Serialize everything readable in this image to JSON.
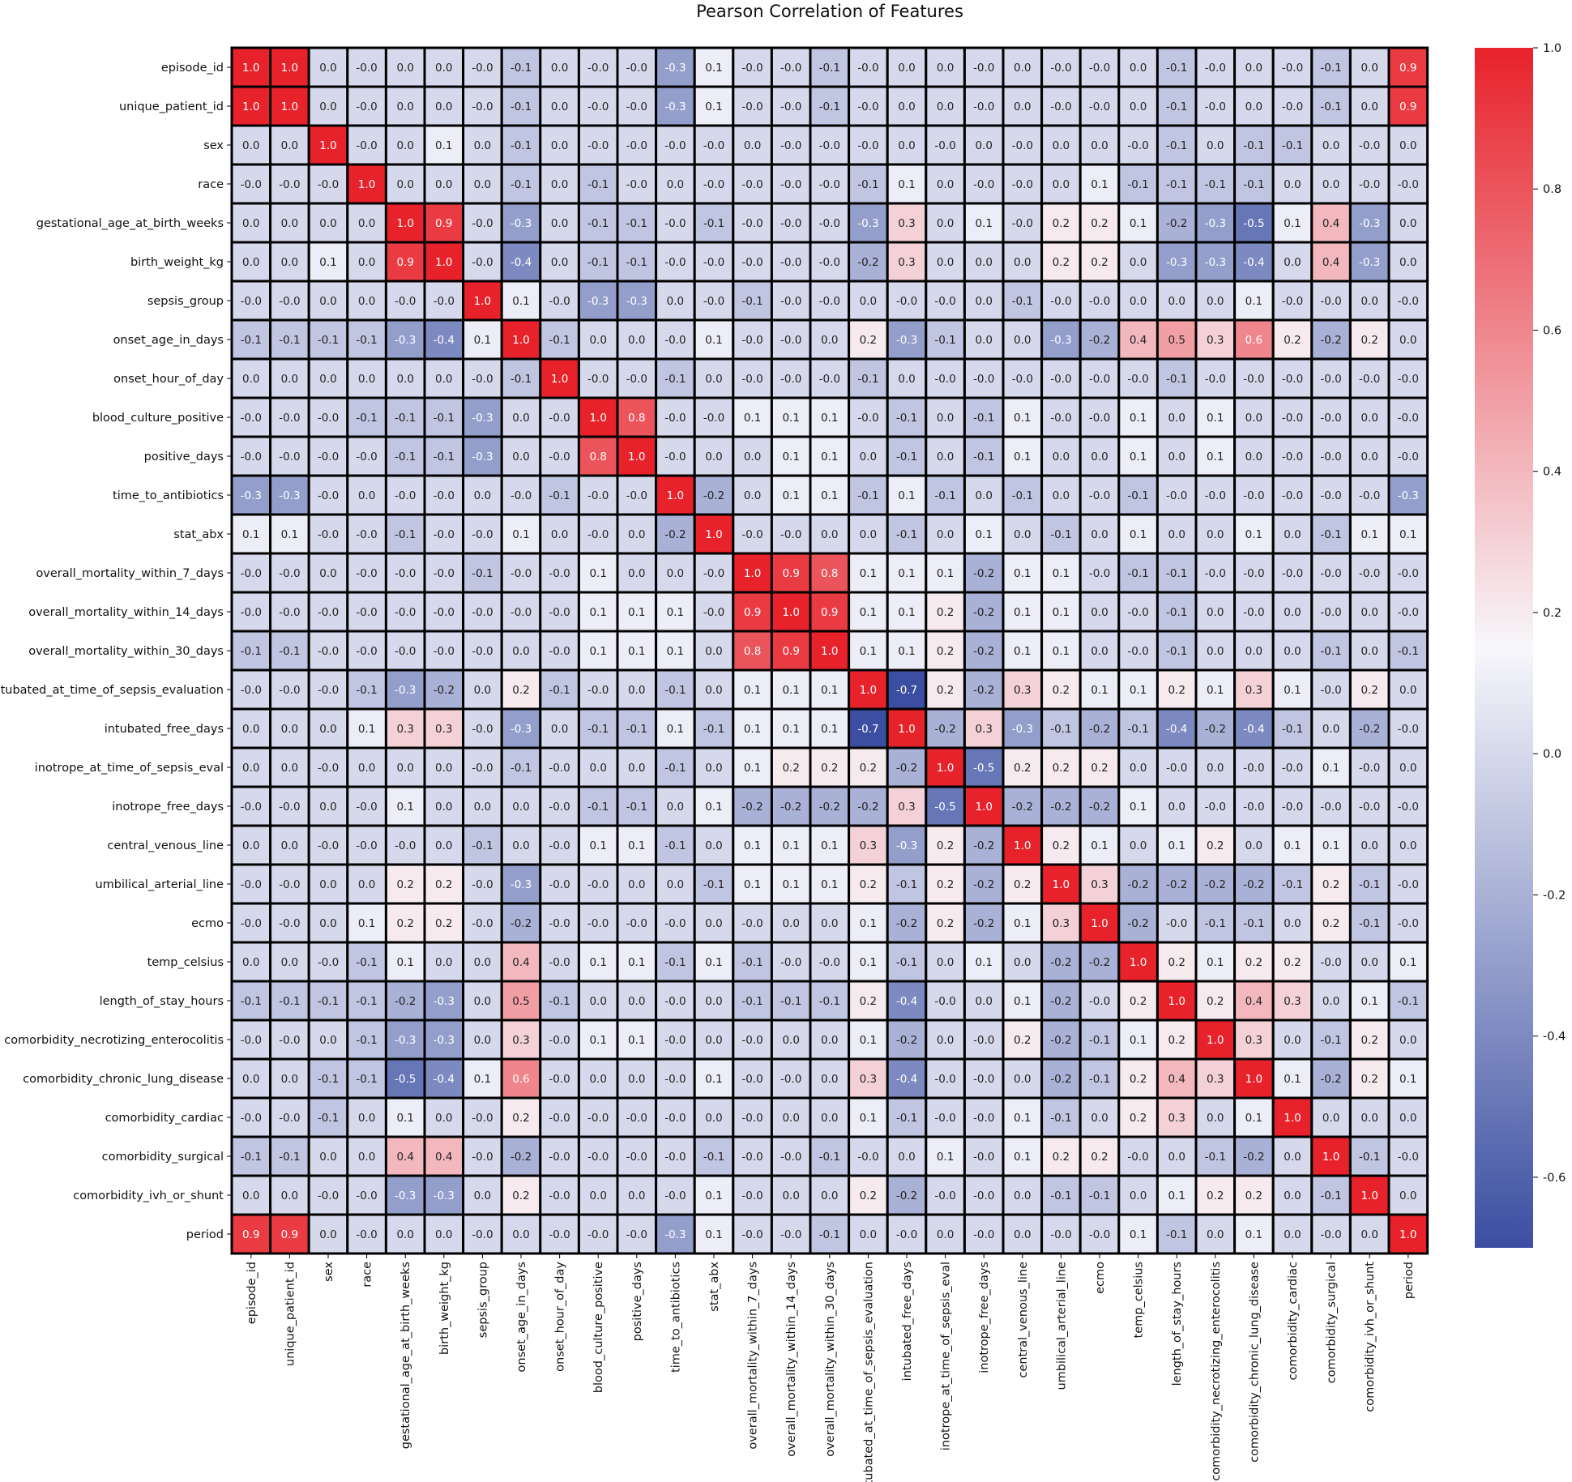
{
  "chart_data": {
    "type": "heatmap",
    "title": "Pearson Correlation of Features",
    "xlabel": "",
    "ylabel": "",
    "labels": [
      "episode_id",
      "unique_patient_id",
      "sex",
      "race",
      "gestational_age_at_birth_weeks",
      "birth_weight_kg",
      "sepsis_group",
      "onset_age_in_days",
      "onset_hour_of_day",
      "blood_culture_positive",
      "positive_days",
      "time_to_antibiotics",
      "stat_abx",
      "overall_mortality_within_7_days",
      "overall_mortality_within_14_days",
      "overall_mortality_within_30_days",
      "intubated_at_time_of_sepsis_evaluation",
      "intubated_free_days",
      "inotrope_at_time_of_sepsis_eval",
      "inotrope_free_days",
      "central_venous_line",
      "umbilical_arterial_line",
      "ecmo",
      "temp_celsius",
      "length_of_stay_hours",
      "comorbidity_necrotizing_enterocolitis",
      "comorbidity_chronic_lung_disease",
      "comorbidity_cardiac",
      "comorbidity_surgical",
      "comorbidity_ivh_or_shunt",
      "period"
    ],
    "display": [
      [
        "1.0",
        "1.0",
        "0.0",
        "-0.0",
        "0.0",
        "0.0",
        "-0.0",
        "-0.1",
        "0.0",
        "-0.0",
        "-0.0",
        "-0.3",
        "0.1",
        "-0.0",
        "-0.0",
        "-0.1",
        "-0.0",
        "0.0",
        "0.0",
        "-0.0",
        "0.0",
        "-0.0",
        "-0.0",
        "0.0",
        "-0.1",
        "-0.0",
        "0.0",
        "-0.0",
        "-0.1",
        "0.0",
        "0.9"
      ],
      [
        "1.0",
        "1.0",
        "0.0",
        "-0.0",
        "0.0",
        "0.0",
        "-0.0",
        "-0.1",
        "0.0",
        "-0.0",
        "-0.0",
        "-0.3",
        "0.1",
        "-0.0",
        "-0.0",
        "-0.1",
        "-0.0",
        "0.0",
        "0.0",
        "-0.0",
        "0.0",
        "-0.0",
        "-0.0",
        "0.0",
        "-0.1",
        "-0.0",
        "0.0",
        "-0.0",
        "-0.1",
        "0.0",
        "0.9"
      ],
      [
        "0.0",
        "0.0",
        "1.0",
        "-0.0",
        "0.0",
        "0.1",
        "0.0",
        "-0.1",
        "0.0",
        "-0.0",
        "-0.0",
        "-0.0",
        "-0.0",
        "0.0",
        "-0.0",
        "-0.0",
        "-0.0",
        "0.0",
        "-0.0",
        "0.0",
        "-0.0",
        "0.0",
        "0.0",
        "-0.0",
        "-0.1",
        "0.0",
        "-0.1",
        "-0.1",
        "0.0",
        "-0.0",
        "0.0"
      ],
      [
        "-0.0",
        "-0.0",
        "-0.0",
        "1.0",
        "0.0",
        "0.0",
        "0.0",
        "-0.1",
        "0.0",
        "-0.1",
        "-0.0",
        "0.0",
        "-0.0",
        "-0.0",
        "-0.0",
        "-0.0",
        "-0.1",
        "0.1",
        "0.0",
        "-0.0",
        "-0.0",
        "0.0",
        "0.1",
        "-0.1",
        "-0.1",
        "-0.1",
        "-0.1",
        "0.0",
        "0.0",
        "-0.0",
        "-0.0"
      ],
      [
        "0.0",
        "0.0",
        "0.0",
        "0.0",
        "1.0",
        "0.9",
        "-0.0",
        "-0.3",
        "0.0",
        "-0.1",
        "-0.1",
        "-0.0",
        "-0.1",
        "-0.0",
        "-0.0",
        "-0.0",
        "-0.3",
        "0.3",
        "0.0",
        "0.1",
        "-0.0",
        "0.2",
        "0.2",
        "0.1",
        "-0.2",
        "-0.3",
        "-0.5",
        "0.1",
        "0.4",
        "-0.3",
        "0.0"
      ],
      [
        "0.0",
        "0.0",
        "0.1",
        "0.0",
        "0.9",
        "1.0",
        "-0.0",
        "-0.4",
        "0.0",
        "-0.1",
        "-0.1",
        "-0.0",
        "-0.0",
        "-0.0",
        "-0.0",
        "-0.0",
        "-0.2",
        "0.3",
        "0.0",
        "0.0",
        "0.0",
        "0.2",
        "0.2",
        "0.0",
        "-0.3",
        "-0.3",
        "-0.4",
        "0.0",
        "0.4",
        "-0.3",
        "0.0"
      ],
      [
        "-0.0",
        "-0.0",
        "0.0",
        "0.0",
        "-0.0",
        "-0.0",
        "1.0",
        "0.1",
        "-0.0",
        "-0.3",
        "-0.3",
        "0.0",
        "-0.0",
        "-0.1",
        "-0.0",
        "-0.0",
        "0.0",
        "-0.0",
        "-0.0",
        "0.0",
        "-0.1",
        "-0.0",
        "-0.0",
        "0.0",
        "0.0",
        "0.0",
        "0.1",
        "-0.0",
        "-0.0",
        "0.0",
        "-0.0"
      ],
      [
        "-0.1",
        "-0.1",
        "-0.1",
        "-0.1",
        "-0.3",
        "-0.4",
        "0.1",
        "1.0",
        "-0.1",
        "0.0",
        "0.0",
        "-0.0",
        "0.1",
        "-0.0",
        "-0.0",
        "0.0",
        "0.2",
        "-0.3",
        "-0.1",
        "0.0",
        "0.0",
        "-0.3",
        "-0.2",
        "0.4",
        "0.5",
        "0.3",
        "0.6",
        "0.2",
        "-0.2",
        "0.2",
        "0.0"
      ],
      [
        "0.0",
        "0.0",
        "0.0",
        "0.0",
        "0.0",
        "0.0",
        "-0.0",
        "-0.1",
        "1.0",
        "-0.0",
        "-0.0",
        "-0.1",
        "0.0",
        "-0.0",
        "-0.0",
        "-0.0",
        "-0.1",
        "0.0",
        "-0.0",
        "-0.0",
        "-0.0",
        "-0.0",
        "-0.0",
        "-0.0",
        "-0.1",
        "-0.0",
        "-0.0",
        "-0.0",
        "-0.0",
        "-0.0",
        "-0.0"
      ],
      [
        "-0.0",
        "-0.0",
        "-0.0",
        "-0.1",
        "-0.1",
        "-0.1",
        "-0.3",
        "0.0",
        "-0.0",
        "1.0",
        "0.8",
        "-0.0",
        "-0.0",
        "0.1",
        "0.1",
        "0.1",
        "-0.0",
        "-0.1",
        "0.0",
        "-0.1",
        "0.1",
        "-0.0",
        "-0.0",
        "0.1",
        "0.0",
        "0.1",
        "0.0",
        "-0.0",
        "-0.0",
        "0.0",
        "-0.0"
      ],
      [
        "-0.0",
        "-0.0",
        "-0.0",
        "-0.0",
        "-0.1",
        "-0.1",
        "-0.3",
        "0.0",
        "-0.0",
        "0.8",
        "1.0",
        "-0.0",
        "0.0",
        "0.0",
        "0.1",
        "0.1",
        "0.0",
        "-0.1",
        "0.0",
        "-0.1",
        "0.1",
        "0.0",
        "0.0",
        "0.1",
        "0.0",
        "0.1",
        "0.0",
        "-0.0",
        "-0.0",
        "0.0",
        "-0.0"
      ],
      [
        "-0.3",
        "-0.3",
        "-0.0",
        "0.0",
        "-0.0",
        "-0.0",
        "0.0",
        "-0.0",
        "-0.1",
        "-0.0",
        "-0.0",
        "1.0",
        "-0.2",
        "0.0",
        "0.1",
        "0.1",
        "-0.1",
        "0.1",
        "-0.1",
        "0.0",
        "-0.1",
        "0.0",
        "-0.0",
        "-0.1",
        "-0.0",
        "-0.0",
        "-0.0",
        "-0.0",
        "-0.0",
        "-0.0",
        "-0.3"
      ],
      [
        "0.1",
        "0.1",
        "-0.0",
        "-0.0",
        "-0.1",
        "-0.0",
        "-0.0",
        "0.1",
        "0.0",
        "-0.0",
        "0.0",
        "-0.2",
        "1.0",
        "-0.0",
        "-0.0",
        "0.0",
        "0.0",
        "-0.1",
        "0.0",
        "0.1",
        "0.0",
        "-0.1",
        "0.0",
        "0.1",
        "0.0",
        "0.0",
        "0.1",
        "0.0",
        "-0.1",
        "0.1",
        "0.1"
      ],
      [
        "-0.0",
        "-0.0",
        "0.0",
        "-0.0",
        "-0.0",
        "-0.0",
        "-0.1",
        "-0.0",
        "-0.0",
        "0.1",
        "0.0",
        "0.0",
        "-0.0",
        "1.0",
        "0.9",
        "0.8",
        "0.1",
        "0.1",
        "0.1",
        "-0.2",
        "0.1",
        "0.1",
        "-0.0",
        "-0.1",
        "-0.1",
        "-0.0",
        "-0.0",
        "-0.0",
        "-0.0",
        "-0.0",
        "-0.0"
      ],
      [
        "-0.0",
        "-0.0",
        "-0.0",
        "-0.0",
        "-0.0",
        "-0.0",
        "-0.0",
        "-0.0",
        "-0.0",
        "0.1",
        "0.1",
        "0.1",
        "-0.0",
        "0.9",
        "1.0",
        "0.9",
        "0.1",
        "0.1",
        "0.2",
        "-0.2",
        "0.1",
        "0.1",
        "0.0",
        "-0.0",
        "-0.1",
        "0.0",
        "-0.0",
        "0.0",
        "-0.0",
        "0.0",
        "-0.0"
      ],
      [
        "-0.1",
        "-0.1",
        "-0.0",
        "-0.0",
        "-0.0",
        "-0.0",
        "-0.0",
        "0.0",
        "-0.0",
        "0.1",
        "0.1",
        "0.1",
        "0.0",
        "0.8",
        "0.9",
        "1.0",
        "0.1",
        "0.1",
        "0.2",
        "-0.2",
        "0.1",
        "0.1",
        "0.0",
        "-0.0",
        "-0.1",
        "0.0",
        "0.0",
        "0.0",
        "-0.1",
        "0.0",
        "-0.1"
      ],
      [
        "-0.0",
        "-0.0",
        "-0.0",
        "-0.1",
        "-0.3",
        "-0.2",
        "0.0",
        "0.2",
        "-0.1",
        "-0.0",
        "0.0",
        "-0.1",
        "0.0",
        "0.1",
        "0.1",
        "0.1",
        "1.0",
        "-0.7",
        "0.2",
        "-0.2",
        "0.3",
        "0.2",
        "0.1",
        "0.1",
        "0.2",
        "0.1",
        "0.3",
        "0.1",
        "-0.0",
        "0.2",
        "0.0"
      ],
      [
        "0.0",
        "0.0",
        "0.0",
        "0.1",
        "0.3",
        "0.3",
        "-0.0",
        "-0.3",
        "0.0",
        "-0.1",
        "-0.1",
        "0.1",
        "-0.1",
        "0.1",
        "0.1",
        "0.1",
        "-0.7",
        "1.0",
        "-0.2",
        "0.3",
        "-0.3",
        "-0.1",
        "-0.2",
        "-0.1",
        "-0.4",
        "-0.2",
        "-0.4",
        "-0.1",
        "0.0",
        "-0.2",
        "-0.0"
      ],
      [
        "0.0",
        "0.0",
        "-0.0",
        "0.0",
        "0.0",
        "0.0",
        "-0.0",
        "-0.1",
        "-0.0",
        "0.0",
        "0.0",
        "-0.1",
        "0.0",
        "0.1",
        "0.2",
        "0.2",
        "0.2",
        "-0.2",
        "1.0",
        "-0.5",
        "0.2",
        "0.2",
        "0.2",
        "0.0",
        "-0.0",
        "0.0",
        "-0.0",
        "-0.0",
        "0.1",
        "-0.0",
        "0.0"
      ],
      [
        "-0.0",
        "-0.0",
        "0.0",
        "-0.0",
        "0.1",
        "0.0",
        "0.0",
        "0.0",
        "-0.0",
        "-0.1",
        "-0.1",
        "0.0",
        "0.1",
        "-0.2",
        "-0.2",
        "-0.2",
        "-0.2",
        "0.3",
        "-0.5",
        "1.0",
        "-0.2",
        "-0.2",
        "-0.2",
        "0.1",
        "0.0",
        "-0.0",
        "-0.0",
        "-0.0",
        "-0.0",
        "-0.0",
        "-0.0"
      ],
      [
        "0.0",
        "0.0",
        "-0.0",
        "-0.0",
        "-0.0",
        "0.0",
        "-0.1",
        "0.0",
        "-0.0",
        "0.1",
        "0.1",
        "-0.1",
        "0.0",
        "0.1",
        "0.1",
        "0.1",
        "0.3",
        "-0.3",
        "0.2",
        "-0.2",
        "1.0",
        "0.2",
        "0.1",
        "0.0",
        "0.1",
        "0.2",
        "0.0",
        "0.1",
        "0.1",
        "0.0",
        "0.0"
      ],
      [
        "-0.0",
        "-0.0",
        "0.0",
        "0.0",
        "0.2",
        "0.2",
        "-0.0",
        "-0.3",
        "-0.0",
        "-0.0",
        "0.0",
        "0.0",
        "-0.1",
        "0.1",
        "0.1",
        "0.1",
        "0.2",
        "-0.1",
        "0.2",
        "-0.2",
        "0.2",
        "1.0",
        "0.3",
        "-0.2",
        "-0.2",
        "-0.2",
        "-0.2",
        "-0.1",
        "0.2",
        "-0.1",
        "-0.0"
      ],
      [
        "-0.0",
        "-0.0",
        "0.0",
        "0.1",
        "0.2",
        "0.2",
        "-0.0",
        "-0.2",
        "-0.0",
        "-0.0",
        "-0.0",
        "-0.0",
        "0.0",
        "-0.0",
        "0.0",
        "0.0",
        "0.1",
        "-0.2",
        "0.2",
        "-0.2",
        "0.1",
        "0.3",
        "1.0",
        "-0.2",
        "-0.0",
        "-0.1",
        "-0.1",
        "0.0",
        "0.2",
        "-0.1",
        "-0.0"
      ],
      [
        "0.0",
        "0.0",
        "-0.0",
        "-0.1",
        "0.1",
        "0.0",
        "0.0",
        "0.4",
        "-0.0",
        "0.1",
        "0.1",
        "-0.1",
        "0.1",
        "-0.1",
        "-0.0",
        "-0.0",
        "0.1",
        "-0.1",
        "0.0",
        "0.1",
        "0.0",
        "-0.2",
        "-0.2",
        "1.0",
        "0.2",
        "0.1",
        "0.2",
        "0.2",
        "-0.0",
        "0.0",
        "0.1"
      ],
      [
        "-0.1",
        "-0.1",
        "-0.1",
        "-0.1",
        "-0.2",
        "-0.3",
        "0.0",
        "0.5",
        "-0.1",
        "0.0",
        "0.0",
        "-0.0",
        "0.0",
        "-0.1",
        "-0.1",
        "-0.1",
        "0.2",
        "-0.4",
        "-0.0",
        "0.0",
        "0.1",
        "-0.2",
        "-0.0",
        "0.2",
        "1.0",
        "0.2",
        "0.4",
        "0.3",
        "0.0",
        "0.1",
        "-0.1"
      ],
      [
        "-0.0",
        "-0.0",
        "0.0",
        "-0.1",
        "-0.3",
        "-0.3",
        "0.0",
        "0.3",
        "-0.0",
        "0.1",
        "0.1",
        "-0.0",
        "0.0",
        "-0.0",
        "0.0",
        "0.0",
        "0.1",
        "-0.2",
        "0.0",
        "-0.0",
        "0.2",
        "-0.2",
        "-0.1",
        "0.1",
        "0.2",
        "1.0",
        "0.3",
        "0.0",
        "-0.1",
        "0.2",
        "0.0"
      ],
      [
        "0.0",
        "0.0",
        "-0.1",
        "-0.1",
        "-0.5",
        "-0.4",
        "0.1",
        "0.6",
        "-0.0",
        "0.0",
        "0.0",
        "-0.0",
        "0.1",
        "-0.0",
        "-0.0",
        "0.0",
        "0.3",
        "-0.4",
        "-0.0",
        "-0.0",
        "0.0",
        "-0.2",
        "-0.1",
        "0.2",
        "0.4",
        "0.3",
        "1.0",
        "0.1",
        "-0.2",
        "0.2",
        "0.1"
      ],
      [
        "-0.0",
        "-0.0",
        "-0.1",
        "0.0",
        "0.1",
        "0.0",
        "-0.0",
        "0.2",
        "-0.0",
        "-0.0",
        "-0.0",
        "-0.0",
        "0.0",
        "-0.0",
        "0.0",
        "0.0",
        "0.1",
        "-0.1",
        "-0.0",
        "-0.0",
        "0.1",
        "-0.1",
        "0.0",
        "0.2",
        "0.3",
        "0.0",
        "0.1",
        "1.0",
        "0.0",
        "0.0",
        "0.0"
      ],
      [
        "-0.1",
        "-0.1",
        "0.0",
        "0.0",
        "0.4",
        "0.4",
        "-0.0",
        "-0.2",
        "-0.0",
        "-0.0",
        "-0.0",
        "-0.0",
        "-0.1",
        "-0.0",
        "-0.0",
        "-0.1",
        "-0.0",
        "0.0",
        "0.1",
        "-0.0",
        "0.1",
        "0.2",
        "0.2",
        "-0.0",
        "0.0",
        "-0.1",
        "-0.2",
        "0.0",
        "1.0",
        "-0.1",
        "-0.0"
      ],
      [
        "0.0",
        "0.0",
        "-0.0",
        "-0.0",
        "-0.3",
        "-0.3",
        "0.0",
        "0.2",
        "-0.0",
        "0.0",
        "0.0",
        "-0.0",
        "0.1",
        "-0.0",
        "0.0",
        "0.0",
        "0.2",
        "-0.2",
        "-0.0",
        "-0.0",
        "0.0",
        "-0.1",
        "-0.1",
        "0.0",
        "0.1",
        "0.2",
        "0.2",
        "0.0",
        "-0.1",
        "1.0",
        "0.0"
      ],
      [
        "0.9",
        "0.9",
        "0.0",
        "-0.0",
        "0.0",
        "0.0",
        "-0.0",
        "0.0",
        "-0.0",
        "-0.0",
        "-0.0",
        "-0.3",
        "0.1",
        "-0.0",
        "-0.0",
        "-0.1",
        "0.0",
        "-0.0",
        "0.0",
        "-0.0",
        "0.0",
        "-0.0",
        "-0.0",
        "0.1",
        "-0.1",
        "0.0",
        "0.1",
        "0.0",
        "-0.0",
        "0.0",
        "1.0"
      ]
    ],
    "colorbar": {
      "min": -0.7,
      "max": 1.0,
      "center": 0.15,
      "ticks": [
        "1.0",
        "0.8",
        "0.6",
        "0.4",
        "0.2",
        "0.0",
        "-0.2",
        "-0.4",
        "-0.6"
      ],
      "tick_values": [
        1.0,
        0.8,
        0.6,
        0.4,
        0.2,
        0.0,
        -0.2,
        -0.4,
        -0.6
      ],
      "colors": [
        "#3b4ea1",
        "#f7f7fb",
        "#e8222b"
      ]
    },
    "grid": true,
    "legend": "right"
  }
}
